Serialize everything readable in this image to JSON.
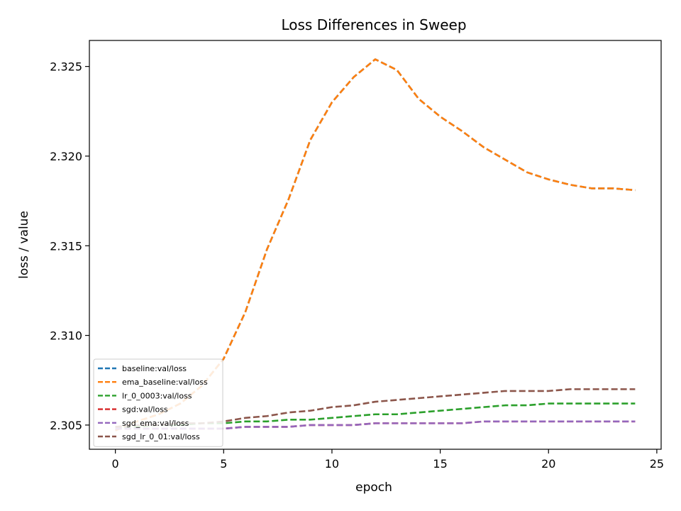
{
  "chart_data": {
    "type": "line",
    "title": "Loss Differences in Sweep",
    "xlabel": "epoch",
    "ylabel": "loss / value",
    "xlim": [
      -1.2,
      25.2
    ],
    "ylim": [
      2.30365,
      2.32645
    ],
    "xticks": [
      0,
      5,
      10,
      15,
      20,
      25
    ],
    "xtick_labels": [
      "0",
      "5",
      "10",
      "15",
      "20",
      "25"
    ],
    "yticks": [
      2.305,
      2.31,
      2.315,
      2.32,
      2.325
    ],
    "ytick_labels": [
      "2.305",
      "2.310",
      "2.315",
      "2.320",
      "2.325"
    ],
    "grid": false,
    "legend_position": "lower-left",
    "x": [
      0,
      1,
      2,
      3,
      4,
      5,
      6,
      7,
      8,
      9,
      10,
      11,
      12,
      13,
      14,
      15,
      16,
      17,
      18,
      19,
      20,
      21,
      22,
      23,
      24
    ],
    "series": [
      {
        "name": "baseline:val/loss",
        "color": "#1f77b4",
        "values": [
          2.3047,
          2.3052,
          2.3056,
          2.3062,
          2.3072,
          2.3087,
          2.3113,
          2.3148,
          2.3176,
          2.3209,
          2.323,
          2.3244,
          2.3254,
          2.3248,
          2.3232,
          2.3222,
          2.3214,
          2.3205,
          2.3198,
          2.3191,
          2.3187,
          2.3184,
          2.3182,
          2.3182,
          2.3181
        ]
      },
      {
        "name": "ema_baseline:val/loss",
        "color": "#ff7f0e",
        "values": [
          2.3047,
          2.3052,
          2.3056,
          2.3062,
          2.3072,
          2.3087,
          2.3113,
          2.3148,
          2.3176,
          2.3209,
          2.323,
          2.3244,
          2.3254,
          2.3248,
          2.3232,
          2.3222,
          2.3214,
          2.3205,
          2.3198,
          2.3191,
          2.3187,
          2.3184,
          2.3182,
          2.3182,
          2.3181
        ]
      },
      {
        "name": "lr_0_0003:val/loss",
        "color": "#2ca02c",
        "values": [
          2.3049,
          2.3049,
          2.305,
          2.305,
          2.3051,
          2.3051,
          2.3052,
          2.3052,
          2.3053,
          2.3053,
          2.3054,
          2.3055,
          2.3056,
          2.3056,
          2.3057,
          2.3058,
          2.3059,
          2.306,
          2.3061,
          2.3061,
          2.3062,
          2.3062,
          2.3062,
          2.3062,
          2.3062
        ]
      },
      {
        "name": "sgd:val/loss",
        "color": "#d62728",
        "values": [
          2.3048,
          2.3048,
          2.3048,
          2.3048,
          2.3048,
          2.3048,
          2.3049,
          2.3049,
          2.3049,
          2.305,
          2.305,
          2.305,
          2.3051,
          2.3051,
          2.3051,
          2.3051,
          2.3051,
          2.3052,
          2.3052,
          2.3052,
          2.3052,
          2.3052,
          2.3052,
          2.3052,
          2.3052
        ]
      },
      {
        "name": "sgd_ema:val/loss",
        "color": "#9467bd",
        "values": [
          2.3048,
          2.3048,
          2.3048,
          2.3048,
          2.3048,
          2.3048,
          2.3049,
          2.3049,
          2.3049,
          2.305,
          2.305,
          2.305,
          2.3051,
          2.3051,
          2.3051,
          2.3051,
          2.3051,
          2.3052,
          2.3052,
          2.3052,
          2.3052,
          2.3052,
          2.3052,
          2.3052,
          2.3052
        ]
      },
      {
        "name": "sgd_lr_0_01:val/loss",
        "color": "#8c564b",
        "values": [
          2.3049,
          2.305,
          2.305,
          2.3051,
          2.3051,
          2.3052,
          2.3054,
          2.3055,
          2.3057,
          2.3058,
          2.306,
          2.3061,
          2.3063,
          2.3064,
          2.3065,
          2.3066,
          2.3067,
          2.3068,
          2.3069,
          2.3069,
          2.3069,
          2.307,
          2.307,
          2.307,
          2.307
        ]
      }
    ]
  }
}
